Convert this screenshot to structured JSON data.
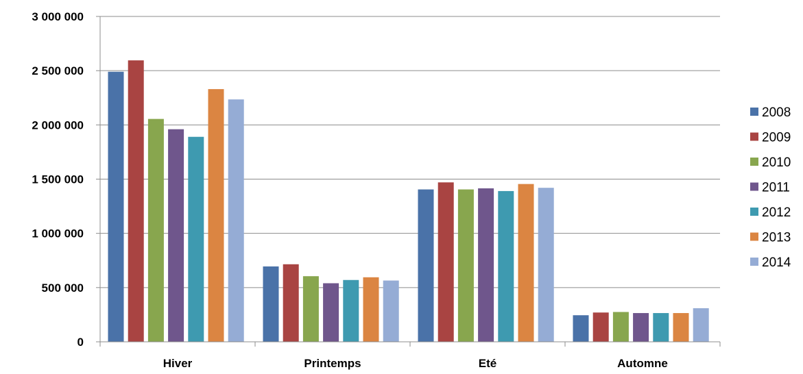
{
  "chart_data": {
    "type": "bar",
    "title": "",
    "xlabel": "",
    "ylabel": "",
    "categories": [
      "Hiver",
      "Printemps",
      "Eté",
      "Automne"
    ],
    "ylim": [
      0,
      3000000
    ],
    "yticks": [
      0,
      500000,
      1000000,
      1500000,
      2000000,
      2500000,
      3000000
    ],
    "ytick_labels": [
      "0",
      "500 000",
      "1 000 000",
      "1 500 000",
      "2 000 000",
      "2 500 000",
      "3 000 000"
    ],
    "grid": "horizontal",
    "legend_position": "right",
    "series": [
      {
        "name": "2008",
        "color": "#4A72A8",
        "values": [
          2490000,
          695000,
          1405000,
          245000
        ]
      },
      {
        "name": "2009",
        "color": "#A94442",
        "values": [
          2595000,
          715000,
          1470000,
          270000
        ]
      },
      {
        "name": "2010",
        "color": "#88A64E",
        "values": [
          2055000,
          605000,
          1405000,
          275000
        ]
      },
      {
        "name": "2011",
        "color": "#6F568C",
        "values": [
          1960000,
          540000,
          1415000,
          265000
        ]
      },
      {
        "name": "2012",
        "color": "#3E9AB0",
        "values": [
          1890000,
          570000,
          1390000,
          265000
        ]
      },
      {
        "name": "2013",
        "color": "#DB8542",
        "values": [
          2330000,
          595000,
          1455000,
          265000
        ]
      },
      {
        "name": "2014",
        "color": "#95ACD5",
        "values": [
          2235000,
          565000,
          1420000,
          310000
        ]
      }
    ]
  }
}
